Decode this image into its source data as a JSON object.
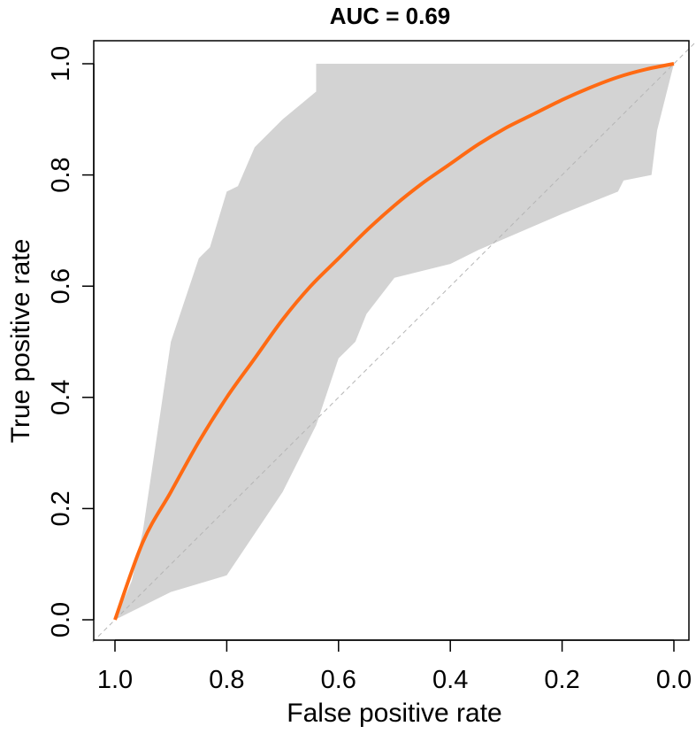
{
  "chart_data": {
    "type": "line",
    "title": "AUC = 0.69",
    "xlabel": "False positive rate",
    "ylabel": "True positive rate",
    "xlim": [
      1.0,
      0.0
    ],
    "ylim": [
      0.0,
      1.0
    ],
    "x_reversed": true,
    "x_ticks": [
      "1.0",
      "0.8",
      "0.6",
      "0.4",
      "0.2",
      "0.0"
    ],
    "y_ticks": [
      "0.0",
      "0.2",
      "0.4",
      "0.6",
      "0.8",
      "1.0"
    ],
    "grid": false,
    "legend": "none",
    "colors": {
      "curve": "#ff6a13",
      "band": "#d3d3d3",
      "reference": "#b5b5b5"
    },
    "series": [
      {
        "role": "smoothed-roc-curve",
        "x": [
          1.0,
          0.95,
          0.9,
          0.85,
          0.8,
          0.75,
          0.7,
          0.65,
          0.6,
          0.55,
          0.5,
          0.45,
          0.4,
          0.35,
          0.3,
          0.25,
          0.2,
          0.15,
          0.1,
          0.05,
          0.0
        ],
        "y": [
          0.0,
          0.14,
          0.23,
          0.32,
          0.4,
          0.47,
          0.54,
          0.6,
          0.65,
          0.7,
          0.745,
          0.785,
          0.82,
          0.855,
          0.885,
          0.91,
          0.935,
          0.957,
          0.976,
          0.99,
          1.0
        ]
      },
      {
        "role": "confidence-band-upper",
        "x": [
          1.0,
          0.97,
          0.95,
          0.9,
          0.85,
          0.83,
          0.8,
          0.78,
          0.75,
          0.7,
          0.64,
          0.64,
          0.3,
          0.0,
          0.0
        ],
        "y": [
          0.0,
          0.07,
          0.16,
          0.5,
          0.65,
          0.67,
          0.77,
          0.78,
          0.85,
          0.9,
          0.95,
          1.0,
          1.0,
          1.0,
          1.0
        ]
      },
      {
        "role": "confidence-band-lower",
        "x": [
          1.0,
          0.9,
          0.8,
          0.7,
          0.64,
          0.6,
          0.57,
          0.55,
          0.5,
          0.4,
          0.35,
          0.2,
          0.1,
          0.09,
          0.04,
          0.03,
          0.0
        ],
        "y": [
          0.0,
          0.05,
          0.08,
          0.23,
          0.35,
          0.47,
          0.5,
          0.55,
          0.615,
          0.64,
          0.665,
          0.73,
          0.77,
          0.79,
          0.8,
          0.88,
          1.0
        ]
      },
      {
        "role": "reference-diagonal",
        "x": [
          1.0,
          0.0
        ],
        "y": [
          0.0,
          1.0
        ]
      }
    ]
  }
}
